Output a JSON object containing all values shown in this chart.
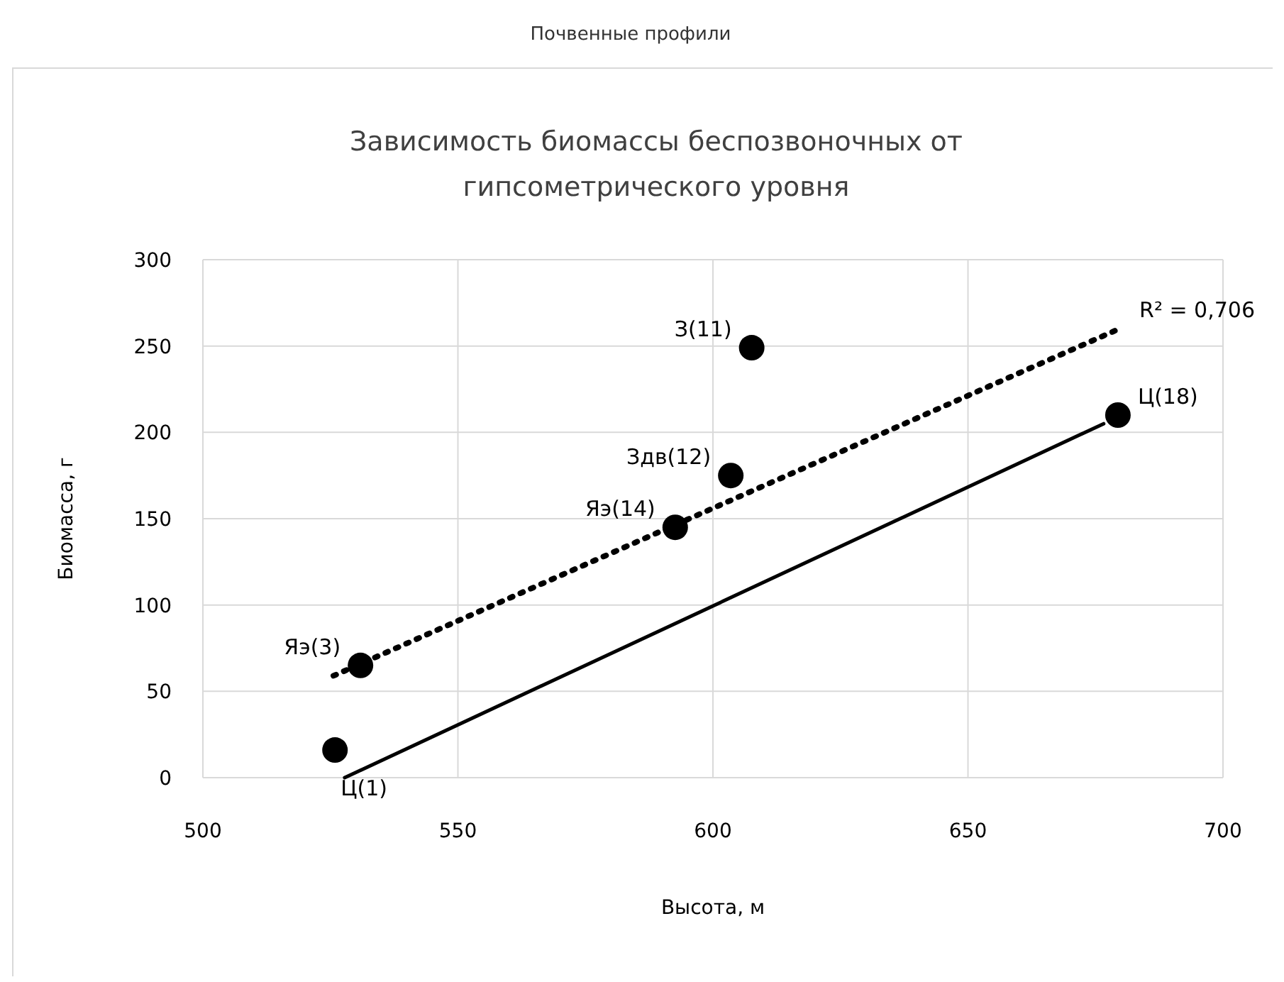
{
  "chart_data": {
    "type": "scatter",
    "title": "Зависимость биомассы беспозвоночных от гипсометрического уровня",
    "xlabel": "Высота, м",
    "ylabel": "Биомасса, г",
    "xlim": [
      500,
      700
    ],
    "xticks": [
      500,
      550,
      600,
      650,
      700
    ],
    "ylim": [
      0,
      300
    ],
    "yticks": [
      0,
      50,
      100,
      150,
      200,
      250,
      300
    ],
    "grid": true,
    "series": [
      {
        "color": "#000000",
        "marker": "circle",
        "x": [
          525.9,
          530.9,
          592.6,
          603.5,
          607.6,
          679.4
        ],
        "values": [
          16,
          65,
          145,
          175,
          249,
          210
        ]
      },
      {
        "type": "line",
        "color": "#000000",
        "line_style": "dotted",
        "x": [
          525.6,
          679.7
        ],
        "values": [
          59,
          260
        ]
      },
      {
        "type": "line",
        "color": "#000000",
        "line_style": "solid",
        "x": [
          527.8,
          676.6
        ],
        "values": [
          0,
          205
        ]
      }
    ],
    "annotations": [
      "Почвенные профили",
      {
        "text": "Ц(1)",
        "x": 525.9,
        "y": 16
      },
      {
        "text": "Яэ(3)",
        "x": 530.9,
        "y": 65
      },
      {
        "text": "Яэ(14)",
        "x": 592.6,
        "y": 145
      },
      {
        "text": "Здв(12)",
        "x": 603.5,
        "y": 175
      },
      {
        "text": "З(11)",
        "x": 607.6,
        "y": 249
      },
      {
        "text": "Ц(18)",
        "x": 679.4,
        "y": 210
      },
      {
        "text": "R² = 0,706",
        "x": 679.7,
        "y": 260
      }
    ]
  }
}
